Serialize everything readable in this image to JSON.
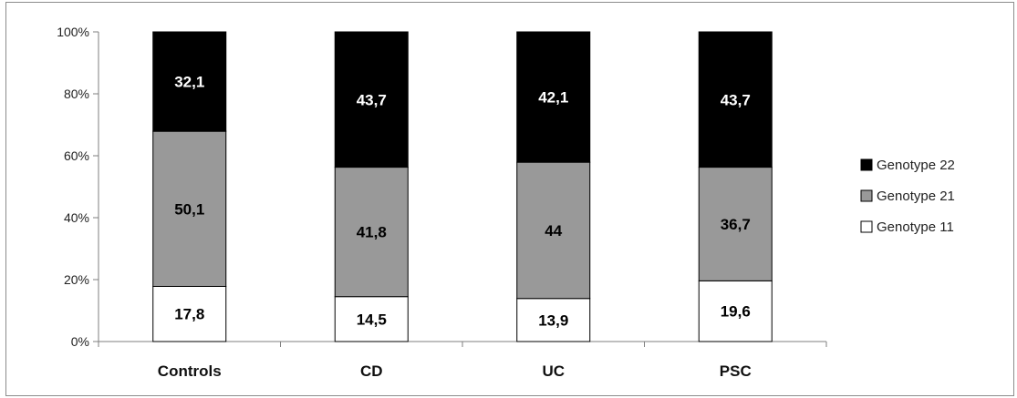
{
  "chart_data": {
    "type": "bar",
    "stacked": true,
    "normalized": true,
    "categories": [
      "Controls",
      "CD",
      "UC",
      "PSC"
    ],
    "series": [
      {
        "name": "Genotype 11",
        "values": [
          17.8,
          14.5,
          13.9,
          19.6
        ],
        "value_labels": [
          "17,8",
          "14,5",
          "13,9",
          "19,6"
        ],
        "color": "#ffffff",
        "label_color": "#000000"
      },
      {
        "name": "Genotype 21",
        "values": [
          50.1,
          41.8,
          44,
          36.7
        ],
        "value_labels": [
          "50,1",
          "41,8",
          "44",
          "36,7"
        ],
        "color": "#999999",
        "label_color": "#000000"
      },
      {
        "name": "Genotype 22",
        "values": [
          32.1,
          43.7,
          42.1,
          43.7
        ],
        "value_labels": [
          "32,1",
          "43,7",
          "42,1",
          "43,7"
        ],
        "color": "#000000",
        "label_color": "#ffffff"
      }
    ],
    "yticks": [
      "0%",
      "20%",
      "40%",
      "60%",
      "80%",
      "100%"
    ],
    "ylim": [
      0,
      100
    ],
    "legend_order": [
      "Genotype 22",
      "Genotype 21",
      "Genotype 11"
    ],
    "legend_position": "right",
    "grid": false
  }
}
